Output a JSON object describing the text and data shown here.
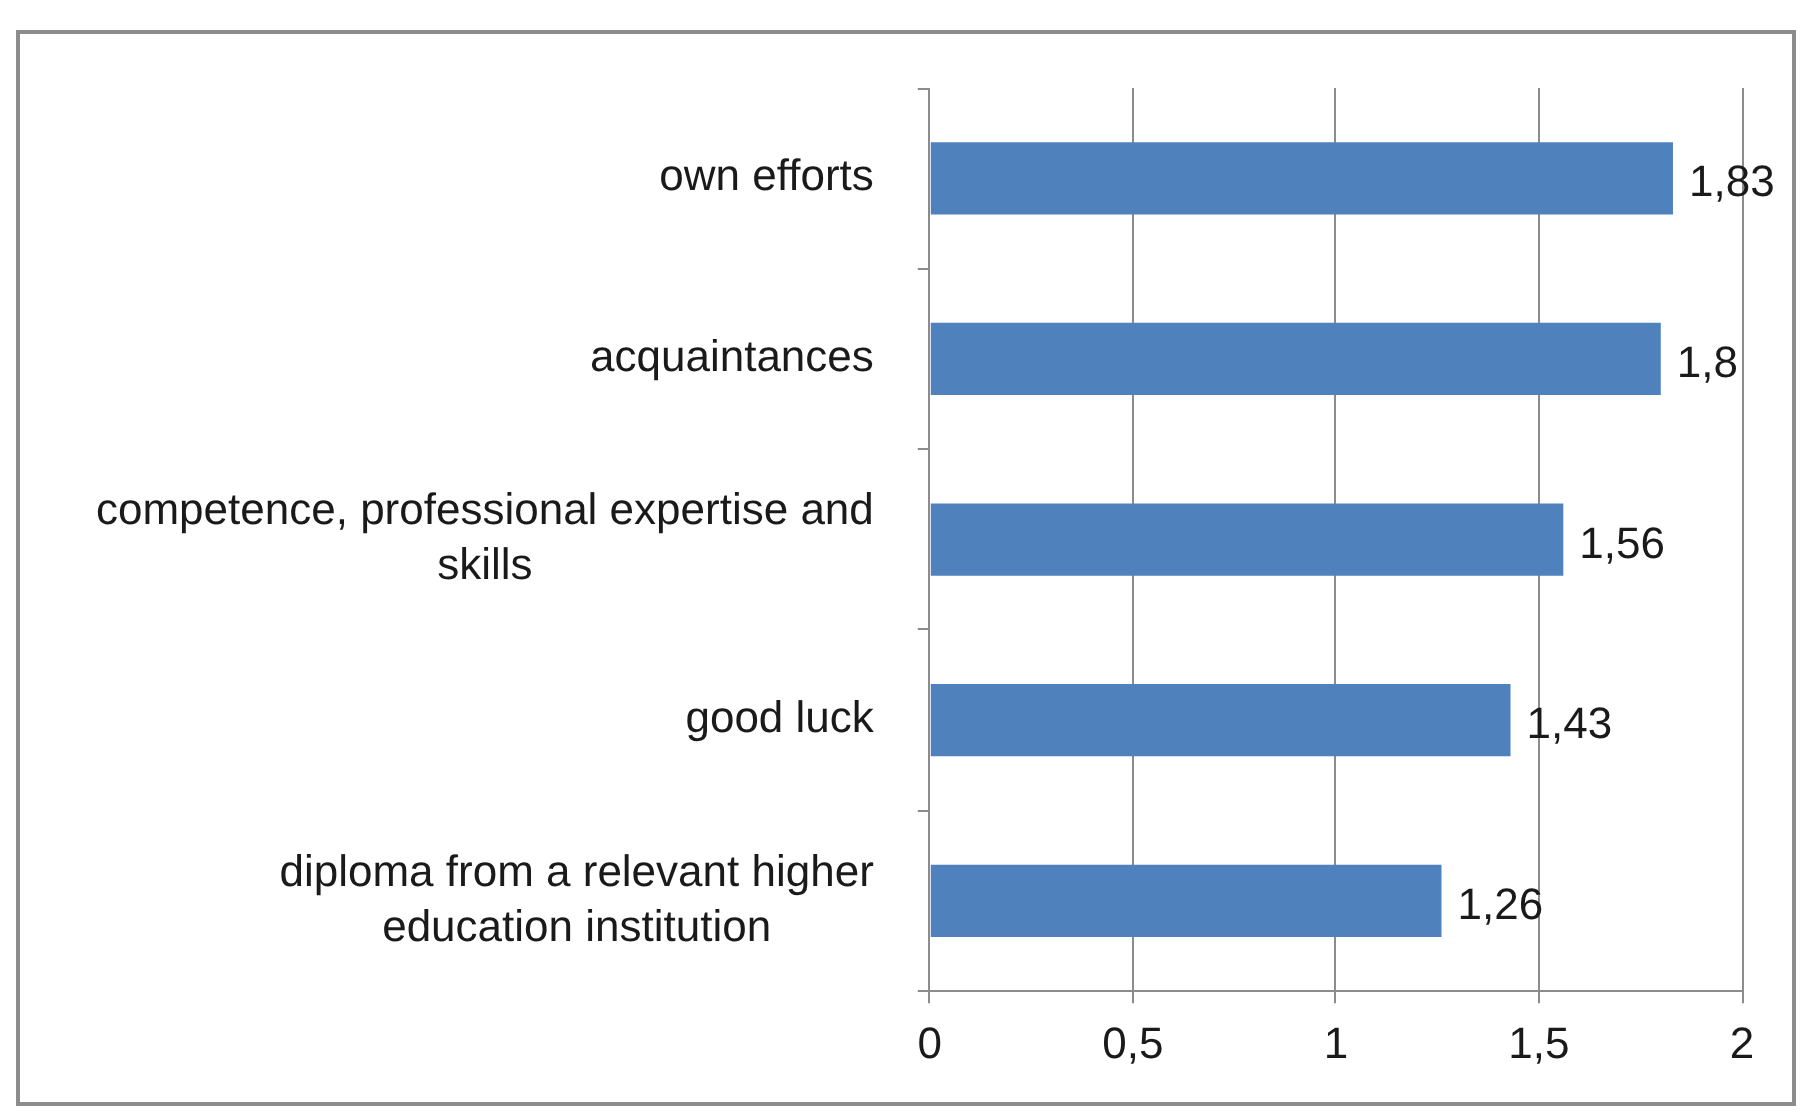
{
  "chart_data": {
    "type": "bar",
    "orientation": "horizontal",
    "categories": [
      "own efforts",
      "acquaintances",
      "competence, professional expertise and skills",
      "good luck",
      "diploma from a relevant higher education institution"
    ],
    "values": [
      1.83,
      1.8,
      1.56,
      1.43,
      1.26
    ],
    "value_labels": [
      "1,83",
      "1,8",
      "1,56",
      "1,43",
      "1,26"
    ],
    "color": "#4f81bd",
    "xlim": [
      0,
      2
    ],
    "xticks": [
      0,
      {
        "value": 0.5,
        "label": "0,5"
      },
      1,
      {
        "value": 1.5,
        "label": "1,5"
      },
      2
    ],
    "grid": "x"
  }
}
